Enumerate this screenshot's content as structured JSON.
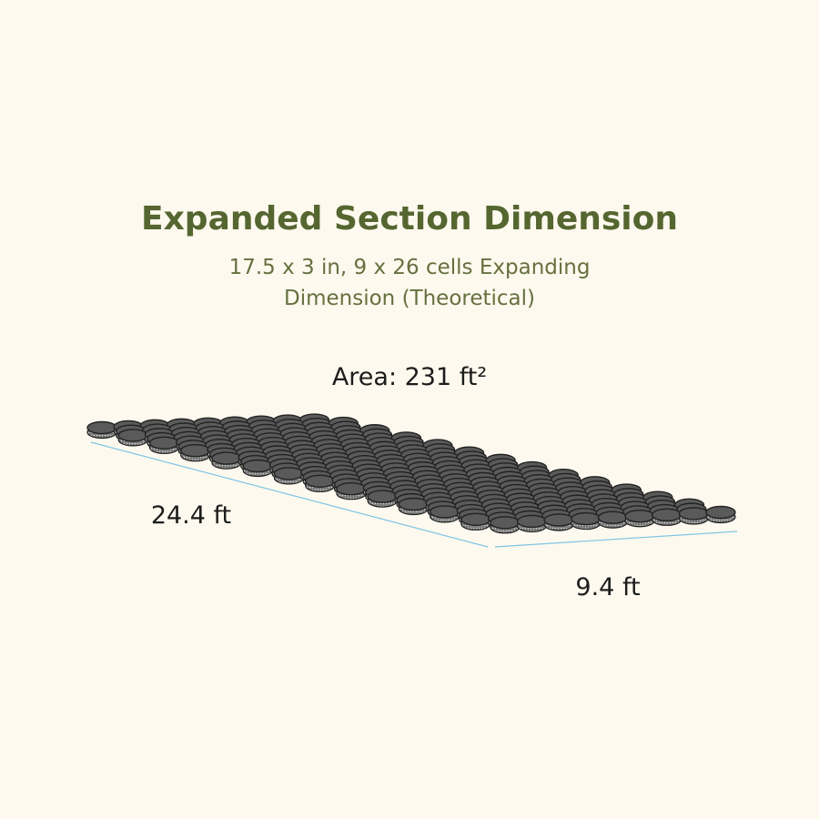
{
  "header": {
    "title": "Expanded Section Dimension",
    "subtitle": [
      "17.5 x 3 in, 9 x 26 cells Expanding",
      "Dimension (Theoretical)"
    ]
  },
  "figure": {
    "area_label": "Area: 231 ft²",
    "length_label": "24.4 ft",
    "width_label": "9.4 ft"
  }
}
